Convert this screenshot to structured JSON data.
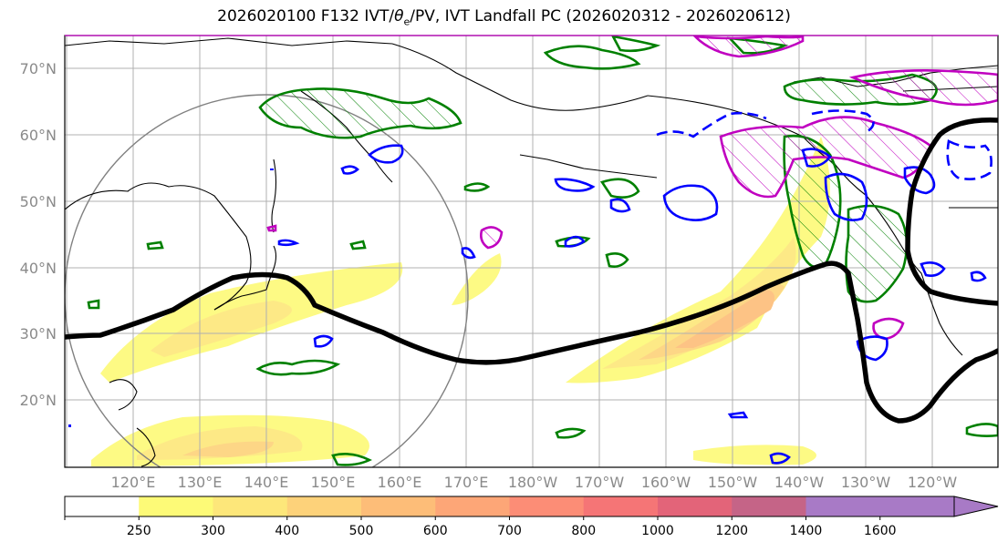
{
  "title": {
    "prefix": "2026020100 F132 IVT/",
    "theta": "θ",
    "sub": "e",
    "suffix": "/PV, IVT Landfall PC (2026020312 - 2026020612)"
  },
  "lat_labels": [
    "70°N",
    "60°N",
    "50°N",
    "40°N",
    "30°N",
    "20°N"
  ],
  "lon_labels": [
    "120°E",
    "130°E",
    "140°E",
    "150°E",
    "160°E",
    "170°E",
    "180°W",
    "170°W",
    "160°W",
    "150°W",
    "140°W",
    "130°W",
    "120°W"
  ],
  "colorbar": {
    "ticks": [
      "250",
      "300",
      "400",
      "500",
      "600",
      "700",
      "800",
      "1000",
      "1200",
      "1400",
      "1600"
    ],
    "colors": [
      "#ffffff",
      "#fdfa77",
      "#fde77a",
      "#fdd27a",
      "#fdbd78",
      "#fda677",
      "#fc8d76",
      "#f57576",
      "#e36479",
      "#c56487",
      "#a87ac6"
    ]
  },
  "legend_colors": {
    "pv_contour": "#000000",
    "theta_e_positive": "#008000",
    "theta_e_negative": "#0000ff",
    "magenta": "#c000c0",
    "reference_circle": "#808080"
  }
}
